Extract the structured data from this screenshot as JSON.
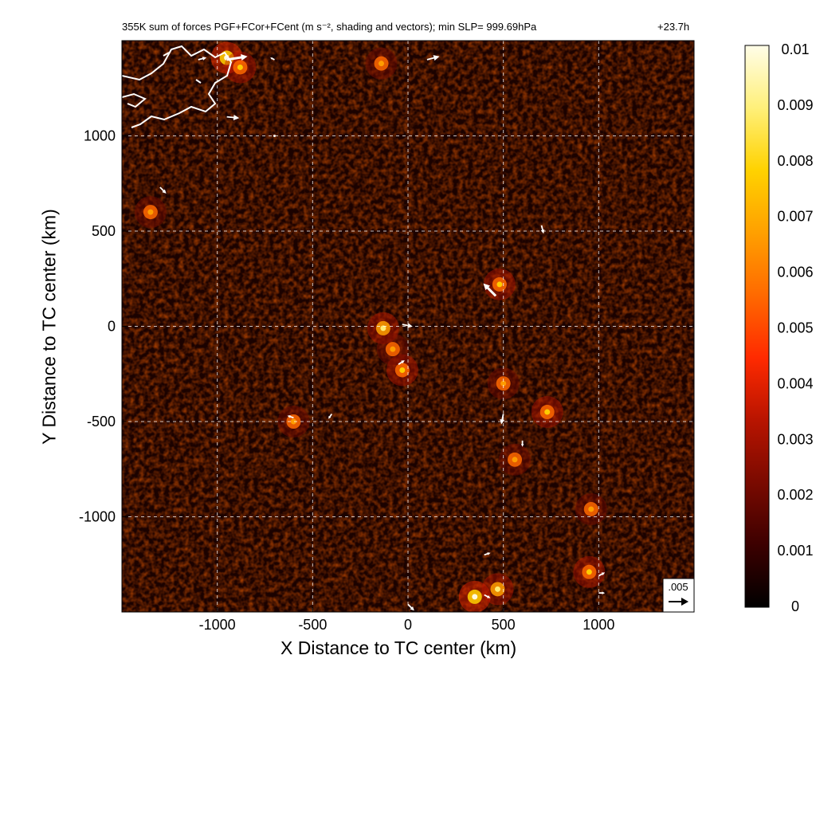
{
  "title_left": "355K sum of forces PGF+FCor+FCent (m s⁻², shading and vectors); min SLP= 999.69hPa",
  "title_right": "+23.7h",
  "chart_data": {
    "type": "heatmap",
    "xlabel": "X Distance to TC center (km)",
    "ylabel": "Y Distance to TC center (km)",
    "xlim": [
      -1500,
      1500
    ],
    "ylim": [
      -1500,
      1500
    ],
    "xticks": [
      -1000,
      -500,
      0,
      500,
      1000
    ],
    "yticks": [
      -1000,
      -500,
      0,
      500,
      1000
    ],
    "grid": true,
    "colorbar": {
      "range": [
        0,
        0.01
      ],
      "ticks": [
        "0.01",
        "0.009",
        "0.008",
        "0.007",
        "0.006",
        "0.005",
        "0.004",
        "0.003",
        "0.002",
        "0.001",
        "0"
      ],
      "colors": [
        "#000000",
        "#3c0000",
        "#7a0a00",
        "#b81400",
        "#ff2a00",
        "#ff6a00",
        "#ffa000",
        "#ffd200",
        "#fff07a",
        "#fffde8"
      ]
    },
    "reference_vector": {
      "label": ".005",
      "value": 0.005
    },
    "hotspots": [
      {
        "x": -950,
        "y": 1410,
        "v": 0.008
      },
      {
        "x": -880,
        "y": 1360,
        "v": 0.006
      },
      {
        "x": -1350,
        "y": 600,
        "v": 0.005
      },
      {
        "x": -130,
        "y": -10,
        "v": 0.007
      },
      {
        "x": -30,
        "y": -230,
        "v": 0.006
      },
      {
        "x": -80,
        "y": -120,
        "v": 0.005
      },
      {
        "x": 480,
        "y": 220,
        "v": 0.006
      },
      {
        "x": 500,
        "y": -300,
        "v": 0.005
      },
      {
        "x": 560,
        "y": -700,
        "v": 0.005
      },
      {
        "x": 730,
        "y": -450,
        "v": 0.006
      },
      {
        "x": 350,
        "y": -1420,
        "v": 0.008
      },
      {
        "x": 470,
        "y": -1380,
        "v": 0.007
      },
      {
        "x": 950,
        "y": -1290,
        "v": 0.006
      },
      {
        "x": -600,
        "y": -500,
        "v": 0.005
      },
      {
        "x": -140,
        "y": 1380,
        "v": 0.005
      },
      {
        "x": 960,
        "y": -960,
        "v": 0.005
      }
    ],
    "vectors": [
      {
        "x": -1100,
        "y": 1400,
        "u": 0.002,
        "v": 0.0005
      },
      {
        "x": -950,
        "y": 1400,
        "u": 0.005,
        "v": 0.0008
      },
      {
        "x": -700,
        "y": 1400,
        "u": -0.001,
        "v": 0.0005
      },
      {
        "x": 100,
        "y": 1400,
        "u": 0.003,
        "v": 0.0008
      },
      {
        "x": -950,
        "y": 1100,
        "u": 0.003,
        "v": -0.0003
      },
      {
        "x": -1300,
        "y": 730,
        "u": 0.0015,
        "v": -0.0015
      },
      {
        "x": 700,
        "y": 530,
        "u": 0.0005,
        "v": -0.002
      },
      {
        "x": 460,
        "y": 160,
        "u": -0.003,
        "v": 0.003
      },
      {
        "x": -30,
        "y": 10,
        "u": 0.0025,
        "v": -0.0005
      },
      {
        "x": -50,
        "y": -200,
        "u": 0.0015,
        "v": 0.001
      },
      {
        "x": 500,
        "y": -460,
        "u": -0.0005,
        "v": -0.0025
      },
      {
        "x": 600,
        "y": -600,
        "u": 0.0,
        "v": -0.0015
      },
      {
        "x": -600,
        "y": -480,
        "u": -0.0015,
        "v": 0.0005
      },
      {
        "x": -400,
        "y": -460,
        "u": -0.0008,
        "v": -0.0012
      },
      {
        "x": 0,
        "y": -1460,
        "u": 0.0015,
        "v": -0.0015
      },
      {
        "x": 400,
        "y": -1410,
        "u": 0.0015,
        "v": -0.0008
      },
      {
        "x": 1000,
        "y": -1310,
        "u": 0.0015,
        "v": 0.0008
      },
      {
        "x": 1000,
        "y": -1400,
        "u": 0.0015,
        "v": 0.0
      },
      {
        "x": 400,
        "y": -1200,
        "u": 0.0015,
        "v": 0.0005
      },
      {
        "x": -700,
        "y": 1000,
        "u": 0.0,
        "v": 0.0
      }
    ]
  }
}
